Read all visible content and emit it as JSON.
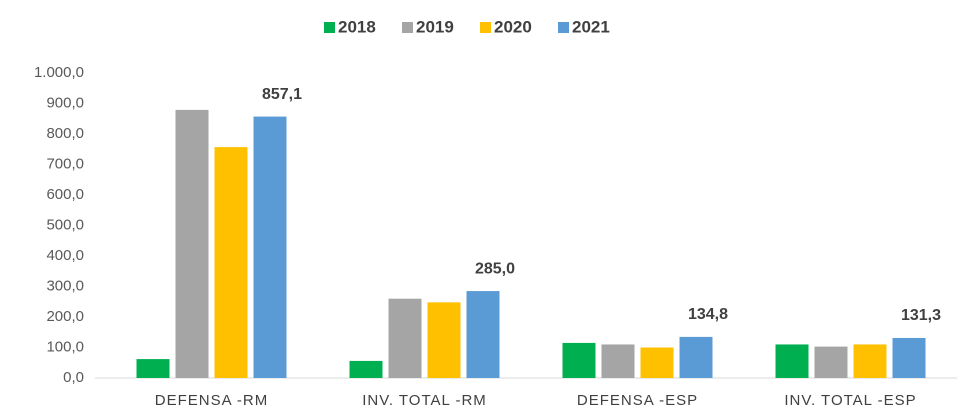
{
  "chart_data": {
    "type": "bar",
    "categories": [
      "DEFENSA -RM",
      "INV. TOTAL -RM",
      "DEFENSA -ESP",
      "INV. TOTAL -ESP"
    ],
    "series": [
      {
        "name": "2018",
        "color": "#00b050",
        "values": [
          62,
          56,
          115,
          110
        ]
      },
      {
        "name": "2019",
        "color": "#a5a5a5",
        "values": [
          879,
          260,
          110,
          103
        ]
      },
      {
        "name": "2020",
        "color": "#ffc000",
        "values": [
          757,
          248,
          100,
          110
        ]
      },
      {
        "name": "2021",
        "color": "#5b9bd5",
        "values": [
          857.1,
          285.0,
          134.8,
          131.3
        ],
        "value_labels": [
          "857,1",
          "285,0",
          "134,8",
          "131,3"
        ]
      }
    ],
    "ylim": [
      0,
      1000
    ],
    "yticks": [
      {
        "value": 0,
        "label": "0,0"
      },
      {
        "value": 100,
        "label": "100,0"
      },
      {
        "value": 200,
        "label": "200,0"
      },
      {
        "value": 300,
        "label": "300,0"
      },
      {
        "value": 400,
        "label": "400,0"
      },
      {
        "value": 500,
        "label": "500,0"
      },
      {
        "value": 600,
        "label": "600,0"
      },
      {
        "value": 700,
        "label": "700,0"
      },
      {
        "value": 800,
        "label": "800,0"
      },
      {
        "value": 900,
        "label": "900,0"
      },
      {
        "value": 1000,
        "label": "1.000,0"
      }
    ],
    "legend": "top"
  }
}
